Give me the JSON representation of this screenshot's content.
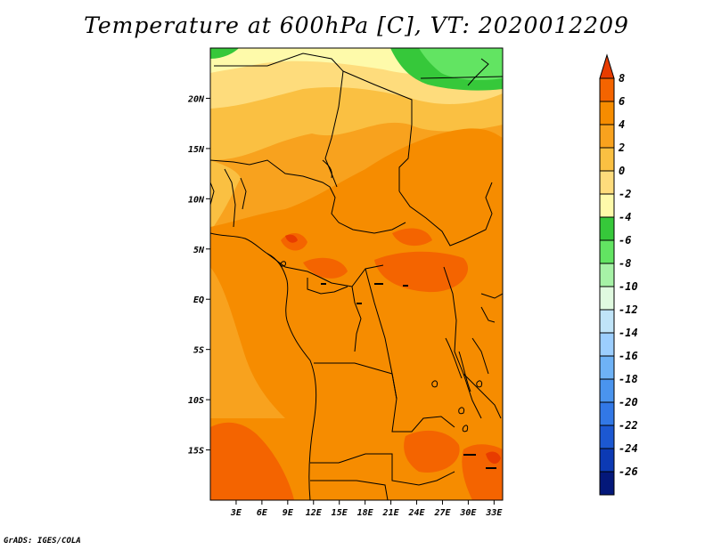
{
  "title": "Temperature at 600hPa [C], VT: 2020012209",
  "credit": "GrADS: IGES/COLA",
  "map": {
    "lon_range": [
      0,
      34
    ],
    "lat_range": [
      -20,
      25
    ],
    "lon_ticks": [
      "3E",
      "6E",
      "9E",
      "12E",
      "15E",
      "18E",
      "21E",
      "24E",
      "27E",
      "30E",
      "33E"
    ],
    "lat_ticks": [
      "20N",
      "15N",
      "10N",
      "5N",
      "EQ",
      "5S",
      "10S",
      "15S"
    ]
  },
  "colorbar": {
    "levels": [
      "8",
      "6",
      "4",
      "2",
      "0",
      "-2",
      "-4",
      "-6",
      "-8",
      "-10",
      "-12",
      "-14",
      "-16",
      "-18",
      "-20",
      "-22",
      "-24",
      "-26"
    ],
    "colors": [
      "#e83c00",
      "#f46400",
      "#f68c00",
      "#f8a21e",
      "#fac042",
      "#fedc7c",
      "#fefaaa",
      "#36c83a",
      "#62e462",
      "#a6f2a6",
      "#e0fae0",
      "#c0e4f8",
      "#9ccefe",
      "#6eb2f6",
      "#4a94ee",
      "#3278e6",
      "#1c58d2",
      "#0c3ab4",
      "#04187a",
      "#e0e0f4"
    ]
  },
  "chart_data": {
    "type": "heatmap",
    "title": "Temperature at 600hPa [C], VT: 2020012209",
    "variable": "Temperature at 600hPa",
    "units": "C",
    "valid_time": "2020012209",
    "lon_range": [
      0,
      34
    ],
    "lat_range": [
      -20,
      25
    ],
    "colorbar_levels": [
      8,
      6,
      4,
      2,
      0,
      -2,
      -4,
      -6,
      -8,
      -10,
      -12,
      -14,
      -16,
      -18,
      -20,
      -22,
      -24,
      -26
    ]
  }
}
